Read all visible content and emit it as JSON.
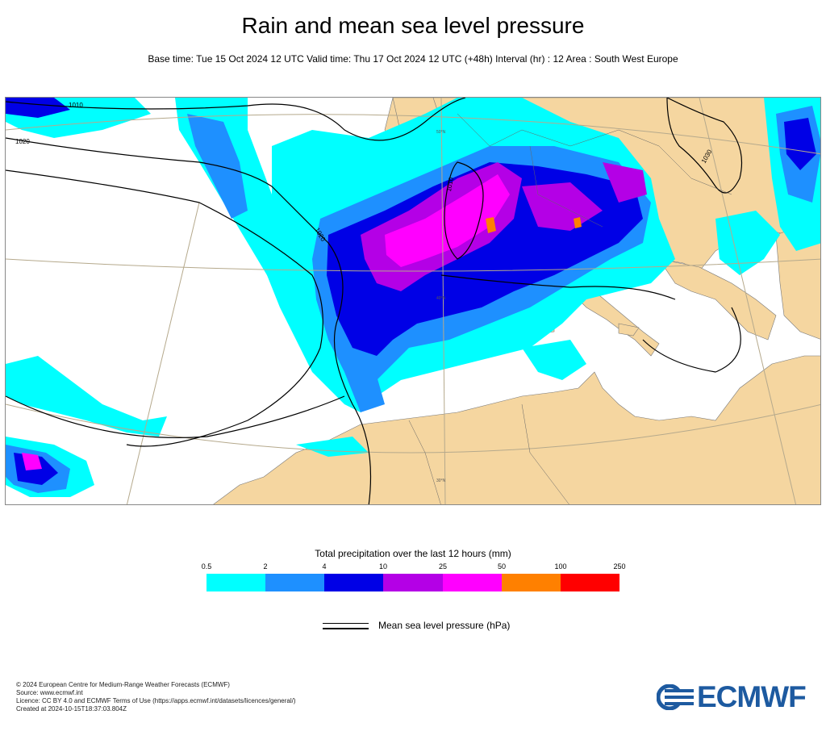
{
  "header": {
    "title": "Rain and mean sea level pressure",
    "subtitle": "Base time: Tue 15 Oct 2024 12 UTC Valid time: Thu 17 Oct 2024 12 UTC (+48h) Interval (hr) : 12 Area : South West Europe"
  },
  "map": {
    "isobar_labels": [
      "1010",
      "1020",
      "1010",
      "1020",
      "1030"
    ],
    "graticule_labels": [
      "50°N",
      "40°N",
      "30°N"
    ],
    "colors": {
      "land": "#f5d6a0",
      "sea": "#ffffff",
      "isobar": "#000000",
      "border": "#555555"
    }
  },
  "legend": {
    "title": "Total precipitation over the last 12 hours (mm)",
    "ticks": [
      "0.5",
      "2",
      "4",
      "10",
      "25",
      "50",
      "100",
      "250"
    ],
    "colors": [
      "#00ffff",
      "#1e90ff",
      "#0000e6",
      "#b400e6",
      "#ff00ff",
      "#ff8000",
      "#ff0000"
    ],
    "pressure_label": "Mean sea level pressure (hPa)"
  },
  "footer": {
    "lines": [
      "© 2024 European Centre for Medium-Range Weather Forecasts (ECMWF)",
      "Source: www.ecmwf.int",
      "Licence: CC BY 4.0 and ECMWF Terms of Use (https://apps.ecmwf.int/datasets/licences/general/)",
      "Created at 2024-10-15T18:37:03.804Z"
    ],
    "logo_text": "ECMWF"
  }
}
